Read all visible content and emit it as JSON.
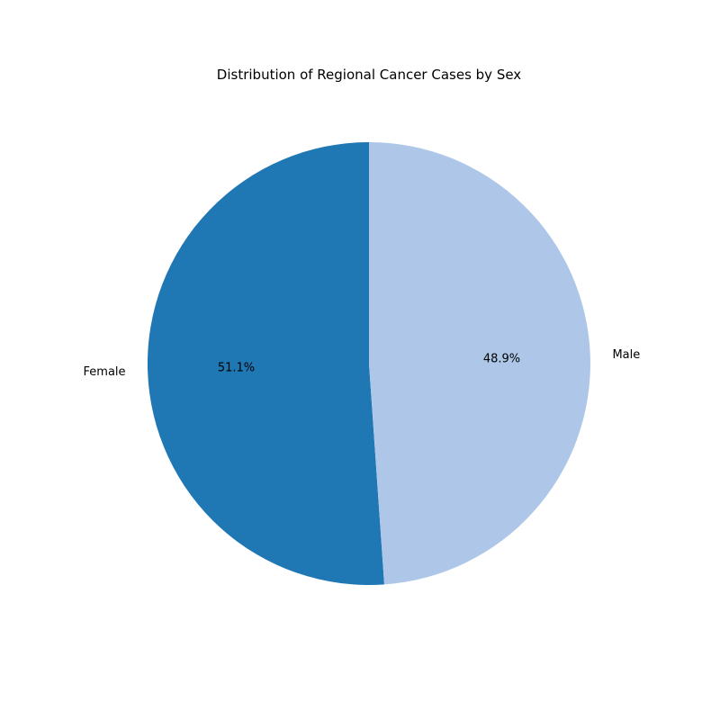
{
  "chart_data": {
    "type": "pie",
    "title": "Distribution of Regional Cancer Cases by Sex",
    "start_angle_deg": 90,
    "direction": "counterclockwise",
    "slices": [
      {
        "label": "Female",
        "value": 51.1,
        "pct_label": "51.1%",
        "color": "#1f77b4"
      },
      {
        "label": "Male",
        "value": 48.9,
        "pct_label": "48.9%",
        "color": "#aec7e8"
      }
    ]
  }
}
